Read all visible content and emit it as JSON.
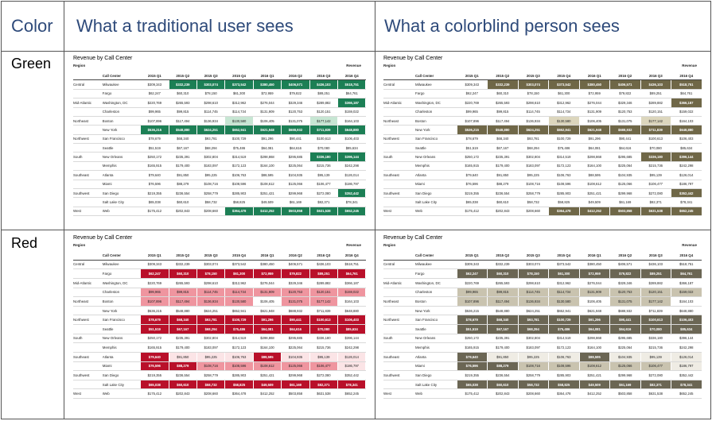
{
  "headers": {
    "color": "Color",
    "traditional": "What a traditional user sees",
    "colorblind": "What a colorblind person sees"
  },
  "rows": [
    {
      "label": "Green"
    },
    {
      "label": "Red"
    }
  ],
  "report": {
    "title": "Revenue by Call Center",
    "region_label": "Region",
    "revenue_label": "Revenue",
    "center_col": "Call Center",
    "columns": [
      "2015 Q1",
      "2015 Q2",
      "2015 Q3",
      "2015 Q4",
      "2016 Q1",
      "2016 Q2",
      "2016 Q3",
      "2016 Q4"
    ],
    "data": [
      {
        "region": "Central",
        "center": "Milwaukee",
        "values": [
          "$309,343",
          "$332,239",
          "$303,074",
          "$373,542",
          "$380,450",
          "$406,571",
          "$436,103",
          "$518,751"
        ]
      },
      {
        "region": "",
        "center": "Fargo",
        "values": [
          "$62,247",
          "$60,310",
          "$78,150",
          "$61,300",
          "$72,959",
          "$79,822",
          "$89,251",
          "$64,761"
        ]
      },
      {
        "region": "Mid-Atlantic",
        "center": "Washington, DC",
        "values": [
          "$220,769",
          "$265,593",
          "$298,610",
          "$312,962",
          "$276,044",
          "$329,346",
          "$289,882",
          "$366,187"
        ]
      },
      {
        "region": "",
        "center": "Charleston",
        "values": [
          "$99,965",
          "$99,815",
          "$114,745",
          "$114,734",
          "$131,909",
          "$120,753",
          "$120,151",
          "$159,022"
        ]
      },
      {
        "region": "Northeast",
        "center": "Boston",
        "values": [
          "$107,896",
          "$117,494",
          "$136,934",
          "$130,580",
          "$106,405",
          "$131,075",
          "$177,142",
          "$164,103"
        ]
      },
      {
        "region": "",
        "center": "New York",
        "values": [
          "$536,215",
          "$548,880",
          "$624,251",
          "$652,941",
          "$621,948",
          "$688,932",
          "$711,839",
          "$648,880"
        ]
      },
      {
        "region": "Northwest",
        "center": "San Francisco",
        "values": [
          "$78,679",
          "$68,340",
          "$93,781",
          "$100,729",
          "$91,296",
          "$90,441",
          "$100,613",
          "$106,403"
        ]
      },
      {
        "region": "",
        "center": "Seattle",
        "values": [
          "$51,519",
          "$67,167",
          "$68,294",
          "$75,486",
          "$64,081",
          "$64,616",
          "$70,080",
          "$85,634"
        ]
      },
      {
        "region": "South",
        "center": "New Orleans",
        "values": [
          "$250,172",
          "$235,391",
          "$302,804",
          "$314,519",
          "$298,868",
          "$295,685",
          "$336,180",
          "$396,144"
        ]
      },
      {
        "region": "",
        "center": "Memphis",
        "values": [
          "$165,915",
          "$179,400",
          "$183,097",
          "$172,123",
          "$164,100",
          "$225,064",
          "$215,736",
          "$242,298"
        ]
      },
      {
        "region": "Southeast",
        "center": "Atlanta",
        "values": [
          "$79,640",
          "$91,850",
          "$95,225",
          "$106,763",
          "$88,595",
          "$104,935",
          "$95,139",
          "$126,014"
        ]
      },
      {
        "region": "",
        "center": "Miami",
        "center2": "",
        "values": [
          "$76,596",
          "$88,279",
          "$108,716",
          "$108,596",
          "$108,612",
          "$125,066",
          "$106,477",
          "$186,797"
        ]
      },
      {
        "region": "Southwest",
        "center": "San Diego",
        "values": [
          "$219,355",
          "$236,554",
          "$258,779",
          "$285,903",
          "$251,421",
          "$299,968",
          "$272,080",
          "$352,442"
        ]
      },
      {
        "region": "",
        "center": "Salt Lake City",
        "values": [
          "$65,038",
          "$60,610",
          "$58,732",
          "$58,825",
          "$49,509",
          "$61,169",
          "$82,371",
          "$78,341"
        ]
      },
      {
        "region": "West",
        "center": "Web",
        "values": [
          "$175,412",
          "$202,843",
          "$208,660",
          "$364,478",
          "$412,252",
          "$503,858",
          "$631,538",
          "$652,245"
        ]
      }
    ]
  },
  "palettes": {
    "green": [
      "#ffffff",
      "#e6f3ec",
      "#c7e6d3",
      "#9fd3b3",
      "#6fbd8f",
      "#3a9e6c",
      "#1c7f55"
    ],
    "green_cb": [
      "#ffffff",
      "#efece0",
      "#dcd6bd",
      "#c8bf98",
      "#ada177",
      "#8f835d",
      "#6f6747"
    ],
    "red": [
      "#ffffff",
      "#fbe4e6",
      "#f6c3c8",
      "#ef959f",
      "#e6626f",
      "#d92a3e",
      "#b9102a"
    ],
    "red_cb": [
      "#ffffff",
      "#efece4",
      "#dedbcf",
      "#c9c3af",
      "#aea78f",
      "#8c8670",
      "#6b6654"
    ]
  },
  "levels": {
    "green": [
      [
        0,
        6,
        6,
        6,
        6,
        6,
        6,
        6
      ],
      [
        0,
        0,
        0,
        0,
        0,
        0,
        0,
        0
      ],
      [
        0,
        0,
        0,
        0,
        0,
        0,
        0,
        6
      ],
      [
        0,
        0,
        0,
        0,
        0,
        0,
        0,
        0
      ],
      [
        0,
        0,
        0,
        2,
        0,
        0,
        2,
        0
      ],
      [
        6,
        6,
        6,
        6,
        6,
        6,
        6,
        6
      ],
      [
        0,
        0,
        0,
        0,
        0,
        0,
        0,
        0
      ],
      [
        0,
        0,
        0,
        0,
        0,
        0,
        0,
        0
      ],
      [
        0,
        0,
        0,
        0,
        0,
        0,
        6,
        6
      ],
      [
        0,
        0,
        0,
        0,
        0,
        0,
        0,
        0
      ],
      [
        0,
        0,
        0,
        0,
        0,
        0,
        0,
        0
      ],
      [
        0,
        0,
        0,
        0,
        0,
        0,
        0,
        0
      ],
      [
        0,
        0,
        0,
        0,
        0,
        0,
        0,
        6
      ],
      [
        0,
        0,
        0,
        0,
        0,
        0,
        0,
        0
      ],
      [
        0,
        0,
        0,
        6,
        6,
        6,
        6,
        6
      ]
    ],
    "red": [
      [
        0,
        0,
        0,
        0,
        0,
        0,
        0,
        0
      ],
      [
        6,
        6,
        6,
        6,
        6,
        6,
        6,
        6
      ],
      [
        0,
        0,
        0,
        0,
        0,
        0,
        0,
        0
      ],
      [
        3,
        3,
        3,
        3,
        3,
        3,
        3,
        3
      ],
      [
        3,
        3,
        3,
        3,
        0,
        3,
        3,
        0
      ],
      [
        0,
        0,
        0,
        0,
        0,
        0,
        0,
        0
      ],
      [
        6,
        6,
        6,
        6,
        6,
        6,
        6,
        6
      ],
      [
        6,
        6,
        6,
        6,
        6,
        6,
        6,
        6
      ],
      [
        0,
        0,
        0,
        0,
        0,
        0,
        0,
        0
      ],
      [
        0,
        0,
        0,
        0,
        0,
        0,
        0,
        0
      ],
      [
        6,
        1,
        1,
        1,
        6,
        1,
        1,
        1
      ],
      [
        6,
        6,
        3,
        3,
        3,
        3,
        3,
        1
      ],
      [
        0,
        0,
        0,
        0,
        0,
        0,
        0,
        0
      ],
      [
        6,
        6,
        6,
        6,
        6,
        6,
        6,
        6
      ],
      [
        0,
        0,
        0,
        0,
        0,
        0,
        0,
        0
      ]
    ]
  }
}
